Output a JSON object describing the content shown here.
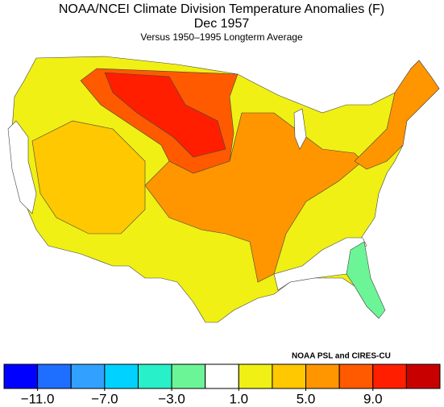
{
  "header": {
    "title": "NOAA/NCEI Climate Division Temperature Anomalies (F)",
    "subtitle": "Dec 1957",
    "note": "Versus 1950–1995 Longterm Average"
  },
  "credit": "NOAA PSL and CIRES-CU",
  "colorbar": {
    "range": [
      -13,
      13
    ],
    "colors": [
      "#0000ff",
      "#1e6eff",
      "#32a0ff",
      "#00d2ff",
      "#28f0c8",
      "#6cf596",
      "#ffffff",
      "#f0f014",
      "#ffc800",
      "#ff9600",
      "#ff5a00",
      "#ff1e00",
      "#c80000"
    ],
    "ticks": [
      {
        "value": -11,
        "label": "−11.0"
      },
      {
        "value": -7,
        "label": "−7.0"
      },
      {
        "value": -3,
        "label": "−3.0"
      },
      {
        "value": 1,
        "label": "1.0"
      },
      {
        "value": 5,
        "label": "5.0"
      },
      {
        "value": 9,
        "label": "9.0"
      }
    ]
  }
}
